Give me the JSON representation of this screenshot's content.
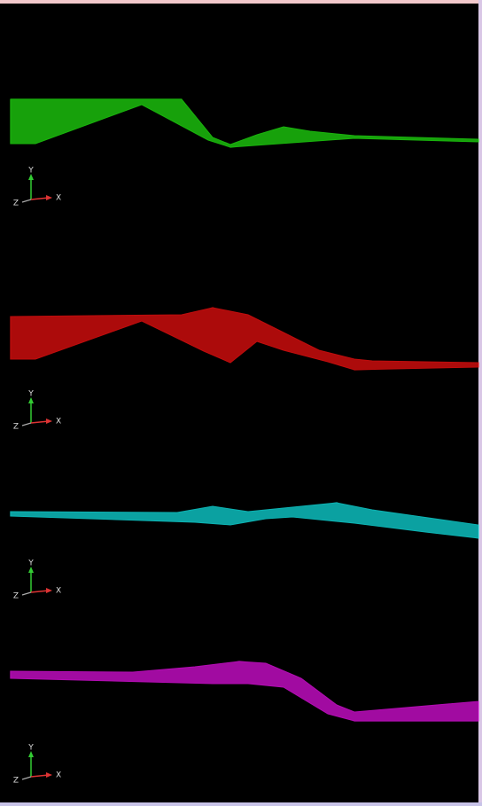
{
  "panels": [
    {
      "color": "#22ee11",
      "axes": {
        "y": "Y",
        "x": "X",
        "z": "Z"
      }
    },
    {
      "color": "#ff1111",
      "axes": {
        "y": "Y",
        "x": "X",
        "z": "Z"
      }
    },
    {
      "color": "#11eeee",
      "axes": {
        "y": "Y",
        "x": "X",
        "z": "Z"
      }
    },
    {
      "color": "#ee11ee",
      "axes": {
        "y": "Y",
        "x": "X",
        "z": "Z"
      }
    }
  ]
}
